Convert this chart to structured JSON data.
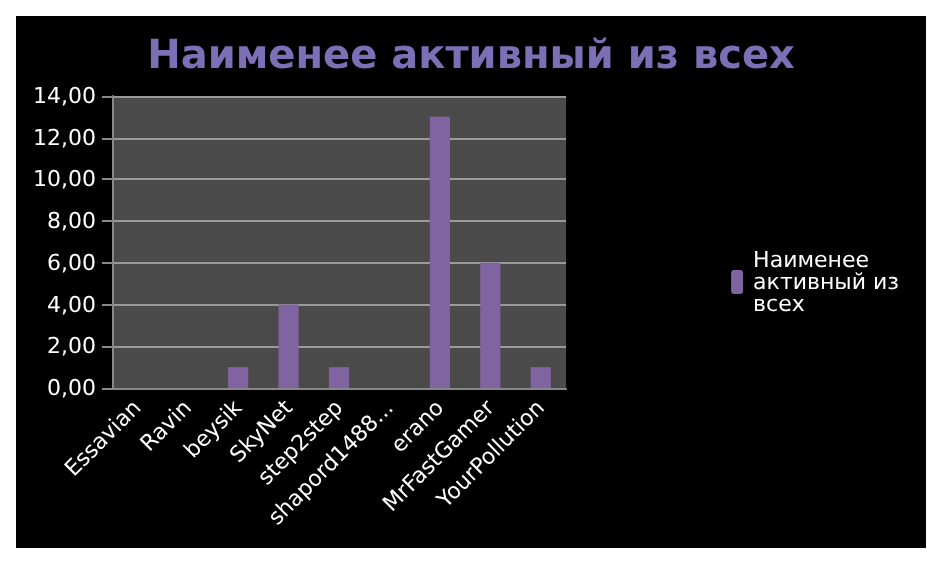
{
  "chart_data": {
    "type": "bar",
    "title": "Наименее активный из всех",
    "categories": [
      "Essavian",
      "Ravin",
      "beysik",
      "SkyNet",
      "step2step",
      "shapord1488...",
      "erano",
      "MrFastGamer",
      "YourPollution"
    ],
    "series": [
      {
        "name": "Наименее активный из всех",
        "color": "#8064a2",
        "values": [
          0,
          0,
          1,
          4,
          1,
          0,
          13,
          6,
          1
        ]
      }
    ],
    "ylim": [
      0,
      14
    ],
    "yticks": [
      {
        "value": 0,
        "label": "0,00"
      },
      {
        "value": 2,
        "label": "2,00"
      },
      {
        "value": 4,
        "label": "4,00"
      },
      {
        "value": 6,
        "label": "6,00"
      },
      {
        "value": 8,
        "label": "8,00"
      },
      {
        "value": 10,
        "label": "10,00"
      },
      {
        "value": 12,
        "label": "12,00"
      },
      {
        "value": 14,
        "label": "14,00"
      }
    ],
    "grid": "y",
    "legend": "right"
  }
}
